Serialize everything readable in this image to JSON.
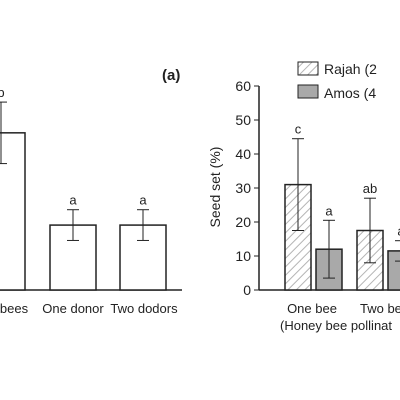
{
  "chart_data": [
    {
      "type": "bar",
      "panel_label": "",
      "categories": [
        "bees",
        "One donor",
        "Two dodors"
      ],
      "values": [
        46,
        19,
        19
      ],
      "errors": [
        9,
        4.5,
        4.5
      ],
      "letters": [
        "b",
        "a",
        "a"
      ],
      "ylim": [
        0,
        60
      ],
      "bar_color": "#ffffff"
    },
    {
      "type": "bar",
      "panel_label": "(a)",
      "ylabel": "Seed set (%)",
      "yticks": [
        0,
        10,
        20,
        30,
        40,
        50,
        60
      ],
      "ylim": [
        0,
        60
      ],
      "categories": [
        "One bee",
        "Two be"
      ],
      "xlabel": "(Honey bee pollinat",
      "series": [
        {
          "name": "Rajah (2",
          "pattern": "hatch",
          "values": [
            31,
            17.5
          ],
          "errors": [
            13.5,
            9.5
          ],
          "letters": [
            "c",
            "ab"
          ]
        },
        {
          "name": "Amos (4",
          "pattern": "solid",
          "color": "#a9a9a9",
          "values": [
            12,
            11.5
          ],
          "errors": [
            8.5,
            3
          ],
          "letters": [
            "a",
            "a"
          ]
        }
      ]
    }
  ]
}
